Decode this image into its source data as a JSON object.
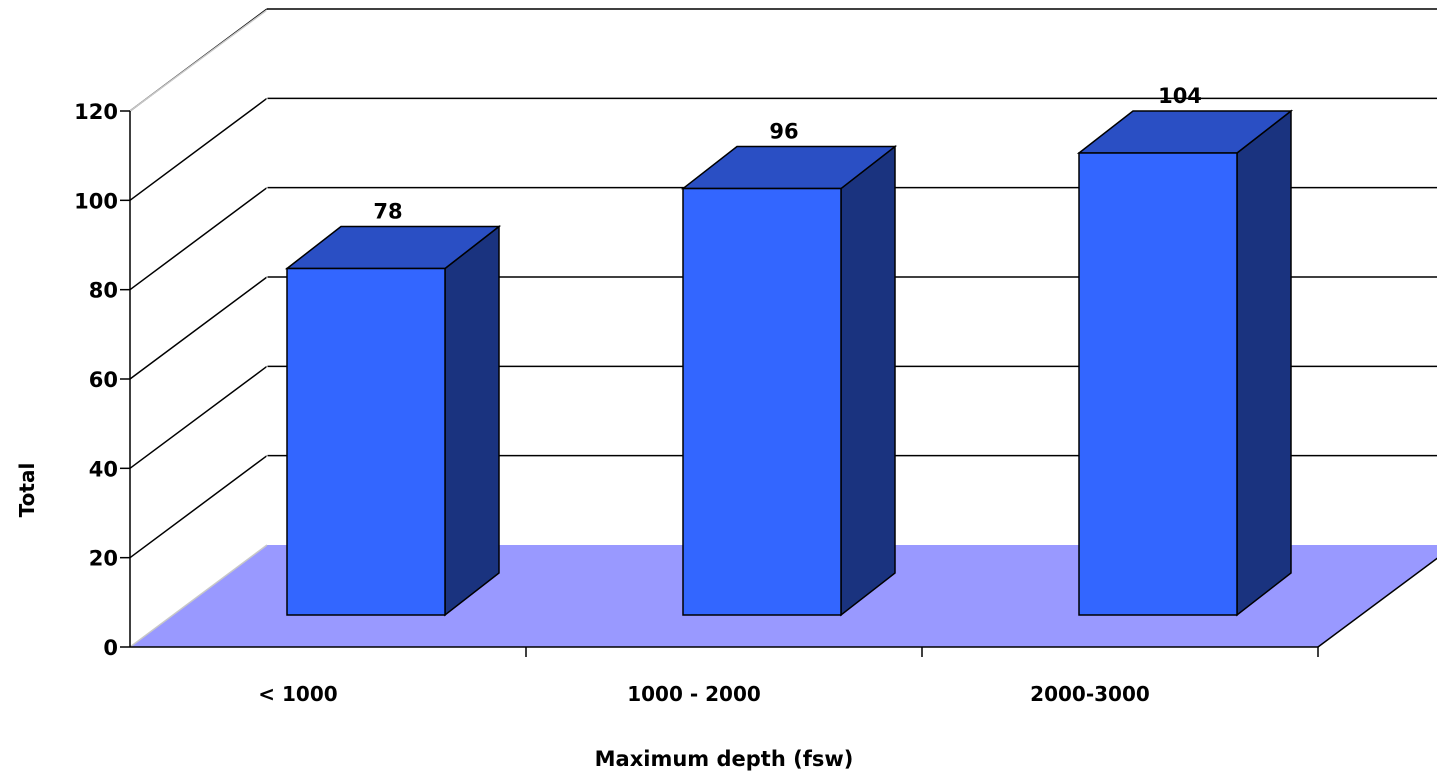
{
  "chart_data": {
    "type": "bar",
    "title": "",
    "xlabel": "Maximum depth (fsw)",
    "ylabel": "Total",
    "categories": [
      "< 1000",
      "1000 - 2000",
      "2000-3000"
    ],
    "values": [
      78,
      96,
      104
    ],
    "ylim": [
      0,
      120
    ],
    "yticks": [
      0,
      20,
      40,
      60,
      80,
      100,
      120
    ],
    "grid": true,
    "legend": "none",
    "three_d": true,
    "colors": {
      "bar_front": "#3366ff",
      "bar_top": "#2a4fc4",
      "bar_side": "#1a337f",
      "floor": "#9999ff",
      "wall": "#ffffff",
      "grid": "#000000"
    }
  }
}
